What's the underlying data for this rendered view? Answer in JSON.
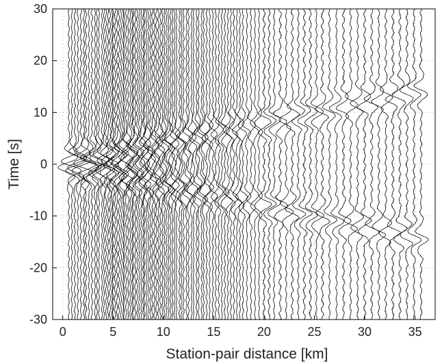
{
  "chart_data": {
    "type": "line",
    "title": "",
    "xlabel": "Station-pair distance [km]",
    "ylabel": "Time [s]",
    "xlim": [
      -1,
      37
    ],
    "ylim": [
      -30,
      30
    ],
    "xticks": [
      0,
      5,
      10,
      15,
      20,
      25,
      30,
      35
    ],
    "yticks": [
      -30,
      -20,
      -10,
      0,
      10,
      20,
      30
    ],
    "grid": true,
    "legend": "none",
    "line_color": "#000000",
    "description_of_series": "Wiggle traces (ambient-noise cross-correlations) plotted at each station-pair distance; symmetric causal/acausal arrivals moving out with distance.",
    "series": {
      "trace_offsets_km": [
        0.6,
        0.9,
        1.2,
        1.5,
        1.8,
        2.1,
        2.3,
        2.6,
        2.9,
        3.2,
        3.4,
        3.6,
        3.9,
        4.1,
        4.3,
        4.5,
        4.7,
        4.9,
        5.0,
        5.2,
        5.4,
        5.6,
        5.8,
        6.0,
        6.1,
        6.3,
        6.5,
        6.7,
        6.9,
        7.0,
        7.2,
        7.4,
        7.6,
        7.8,
        8.0,
        8.1,
        8.3,
        8.5,
        8.7,
        8.9,
        9.1,
        9.3,
        9.5,
        9.7,
        9.9,
        10.1,
        10.3,
        10.5,
        10.7,
        10.9,
        11.1,
        11.3,
        11.6,
        11.8,
        12.0,
        12.3,
        12.5,
        12.8,
        13.0,
        13.3,
        13.5,
        13.8,
        14.0,
        14.3,
        14.6,
        14.9,
        15.2,
        15.5,
        15.8,
        16.1,
        16.4,
        16.7,
        17.0,
        17.3,
        17.6,
        17.9,
        18.3,
        18.7,
        19.1,
        19.5,
        20.0,
        20.5,
        21.0,
        21.6,
        22.2,
        22.8,
        23.4,
        24.0,
        24.6,
        25.2,
        25.8,
        26.5,
        27.2,
        27.9,
        28.6,
        29.3,
        30.0,
        30.7,
        31.4,
        32.1,
        32.8,
        33.5,
        34.2,
        34.9,
        35.6
      ],
      "surface_wave_velocity_km_s": 2.5,
      "pulse_period_s": 4
    }
  }
}
